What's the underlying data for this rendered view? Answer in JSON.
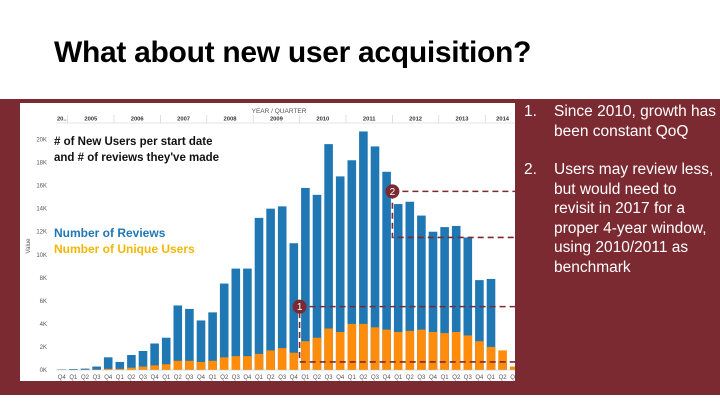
{
  "slide": {
    "title": "What about new user acquisition?",
    "notes": [
      {
        "number": "1.",
        "text": "Since 2010, growth has been constant QoQ"
      },
      {
        "number": "2.",
        "text": "Users may review less, but would need to revisit in 2017 for a proper 4-year window, using 2010/2011 as benchmark"
      }
    ]
  },
  "colors": {
    "band": "#7b2a31",
    "reviews": "#1f77b4",
    "users": "#ff8c0a",
    "users_label": "#f2b705",
    "marker": "#7b2a31"
  },
  "chart_data": {
    "type": "bar",
    "stacked": false,
    "overlay": true,
    "top_axis_title": "YEAR / QUARTER",
    "ylabel": "Value",
    "ylim": [
      0,
      21000
    ],
    "yticks": [
      0,
      2000,
      4000,
      6000,
      8000,
      10000,
      12000,
      14000,
      16000,
      18000,
      20000
    ],
    "ytick_labels": [
      "0K",
      "2K",
      "4K",
      "6K",
      "8K",
      "10K",
      "12K",
      "14K",
      "16K",
      "18K",
      "20K"
    ],
    "grid": false,
    "annotation_title": "# of New Users per start date and # of reviews they've made",
    "years": [
      {
        "label": "20..",
        "start": 0,
        "count": 1
      },
      {
        "label": "2005",
        "start": 1,
        "count": 4
      },
      {
        "label": "2006",
        "start": 5,
        "count": 4
      },
      {
        "label": "2007",
        "start": 9,
        "count": 4
      },
      {
        "label": "2008",
        "start": 13,
        "count": 4
      },
      {
        "label": "2009",
        "start": 17,
        "count": 4
      },
      {
        "label": "2010",
        "start": 21,
        "count": 4
      },
      {
        "label": "2011",
        "start": 25,
        "count": 4
      },
      {
        "label": "2012",
        "start": 29,
        "count": 4
      },
      {
        "label": "2013",
        "start": 33,
        "count": 4
      },
      {
        "label": "2014",
        "start": 37,
        "count": 3
      }
    ],
    "categories": [
      "Q4",
      "Q1",
      "Q2",
      "Q3",
      "Q4",
      "Q1",
      "Q2",
      "Q3",
      "Q4",
      "Q1",
      "Q2",
      "Q3",
      "Q4",
      "Q1",
      "Q2",
      "Q3",
      "Q4",
      "Q1",
      "Q2",
      "Q3",
      "Q4",
      "Q1",
      "Q2",
      "Q3",
      "Q4",
      "Q1",
      "Q2",
      "Q3",
      "Q4",
      "Q1",
      "Q2",
      "Q3",
      "Q4",
      "Q1",
      "Q2",
      "Q3",
      "Q4",
      "Q1",
      "Q2",
      "Q3"
    ],
    "series": [
      {
        "name": "Number of Reviews",
        "values": [
          50,
          80,
          120,
          300,
          1100,
          700,
          1300,
          1650,
          2300,
          2800,
          5600,
          5300,
          4300,
          5000,
          7500,
          8800,
          8800,
          13200,
          14000,
          14200,
          11000,
          15800,
          15200,
          19600,
          16800,
          18200,
          20700,
          19400,
          17200,
          14400,
          14600,
          13400,
          12000,
          12400,
          12500,
          11500,
          7800,
          7900,
          800,
          0
        ]
      },
      {
        "name": "Number of Unique Users",
        "values": [
          10,
          10,
          20,
          30,
          100,
          100,
          200,
          300,
          400,
          500,
          800,
          800,
          700,
          800,
          1100,
          1200,
          1200,
          1400,
          1700,
          1900,
          1500,
          2500,
          2800,
          3600,
          3300,
          4000,
          4000,
          3700,
          3500,
          3300,
          3400,
          3500,
          3300,
          3200,
          3300,
          3000,
          2500,
          2000,
          1700,
          300
        ]
      }
    ],
    "markers": [
      {
        "label": "1",
        "text": ""
      },
      {
        "label": "2",
        "text": ""
      }
    ]
  }
}
